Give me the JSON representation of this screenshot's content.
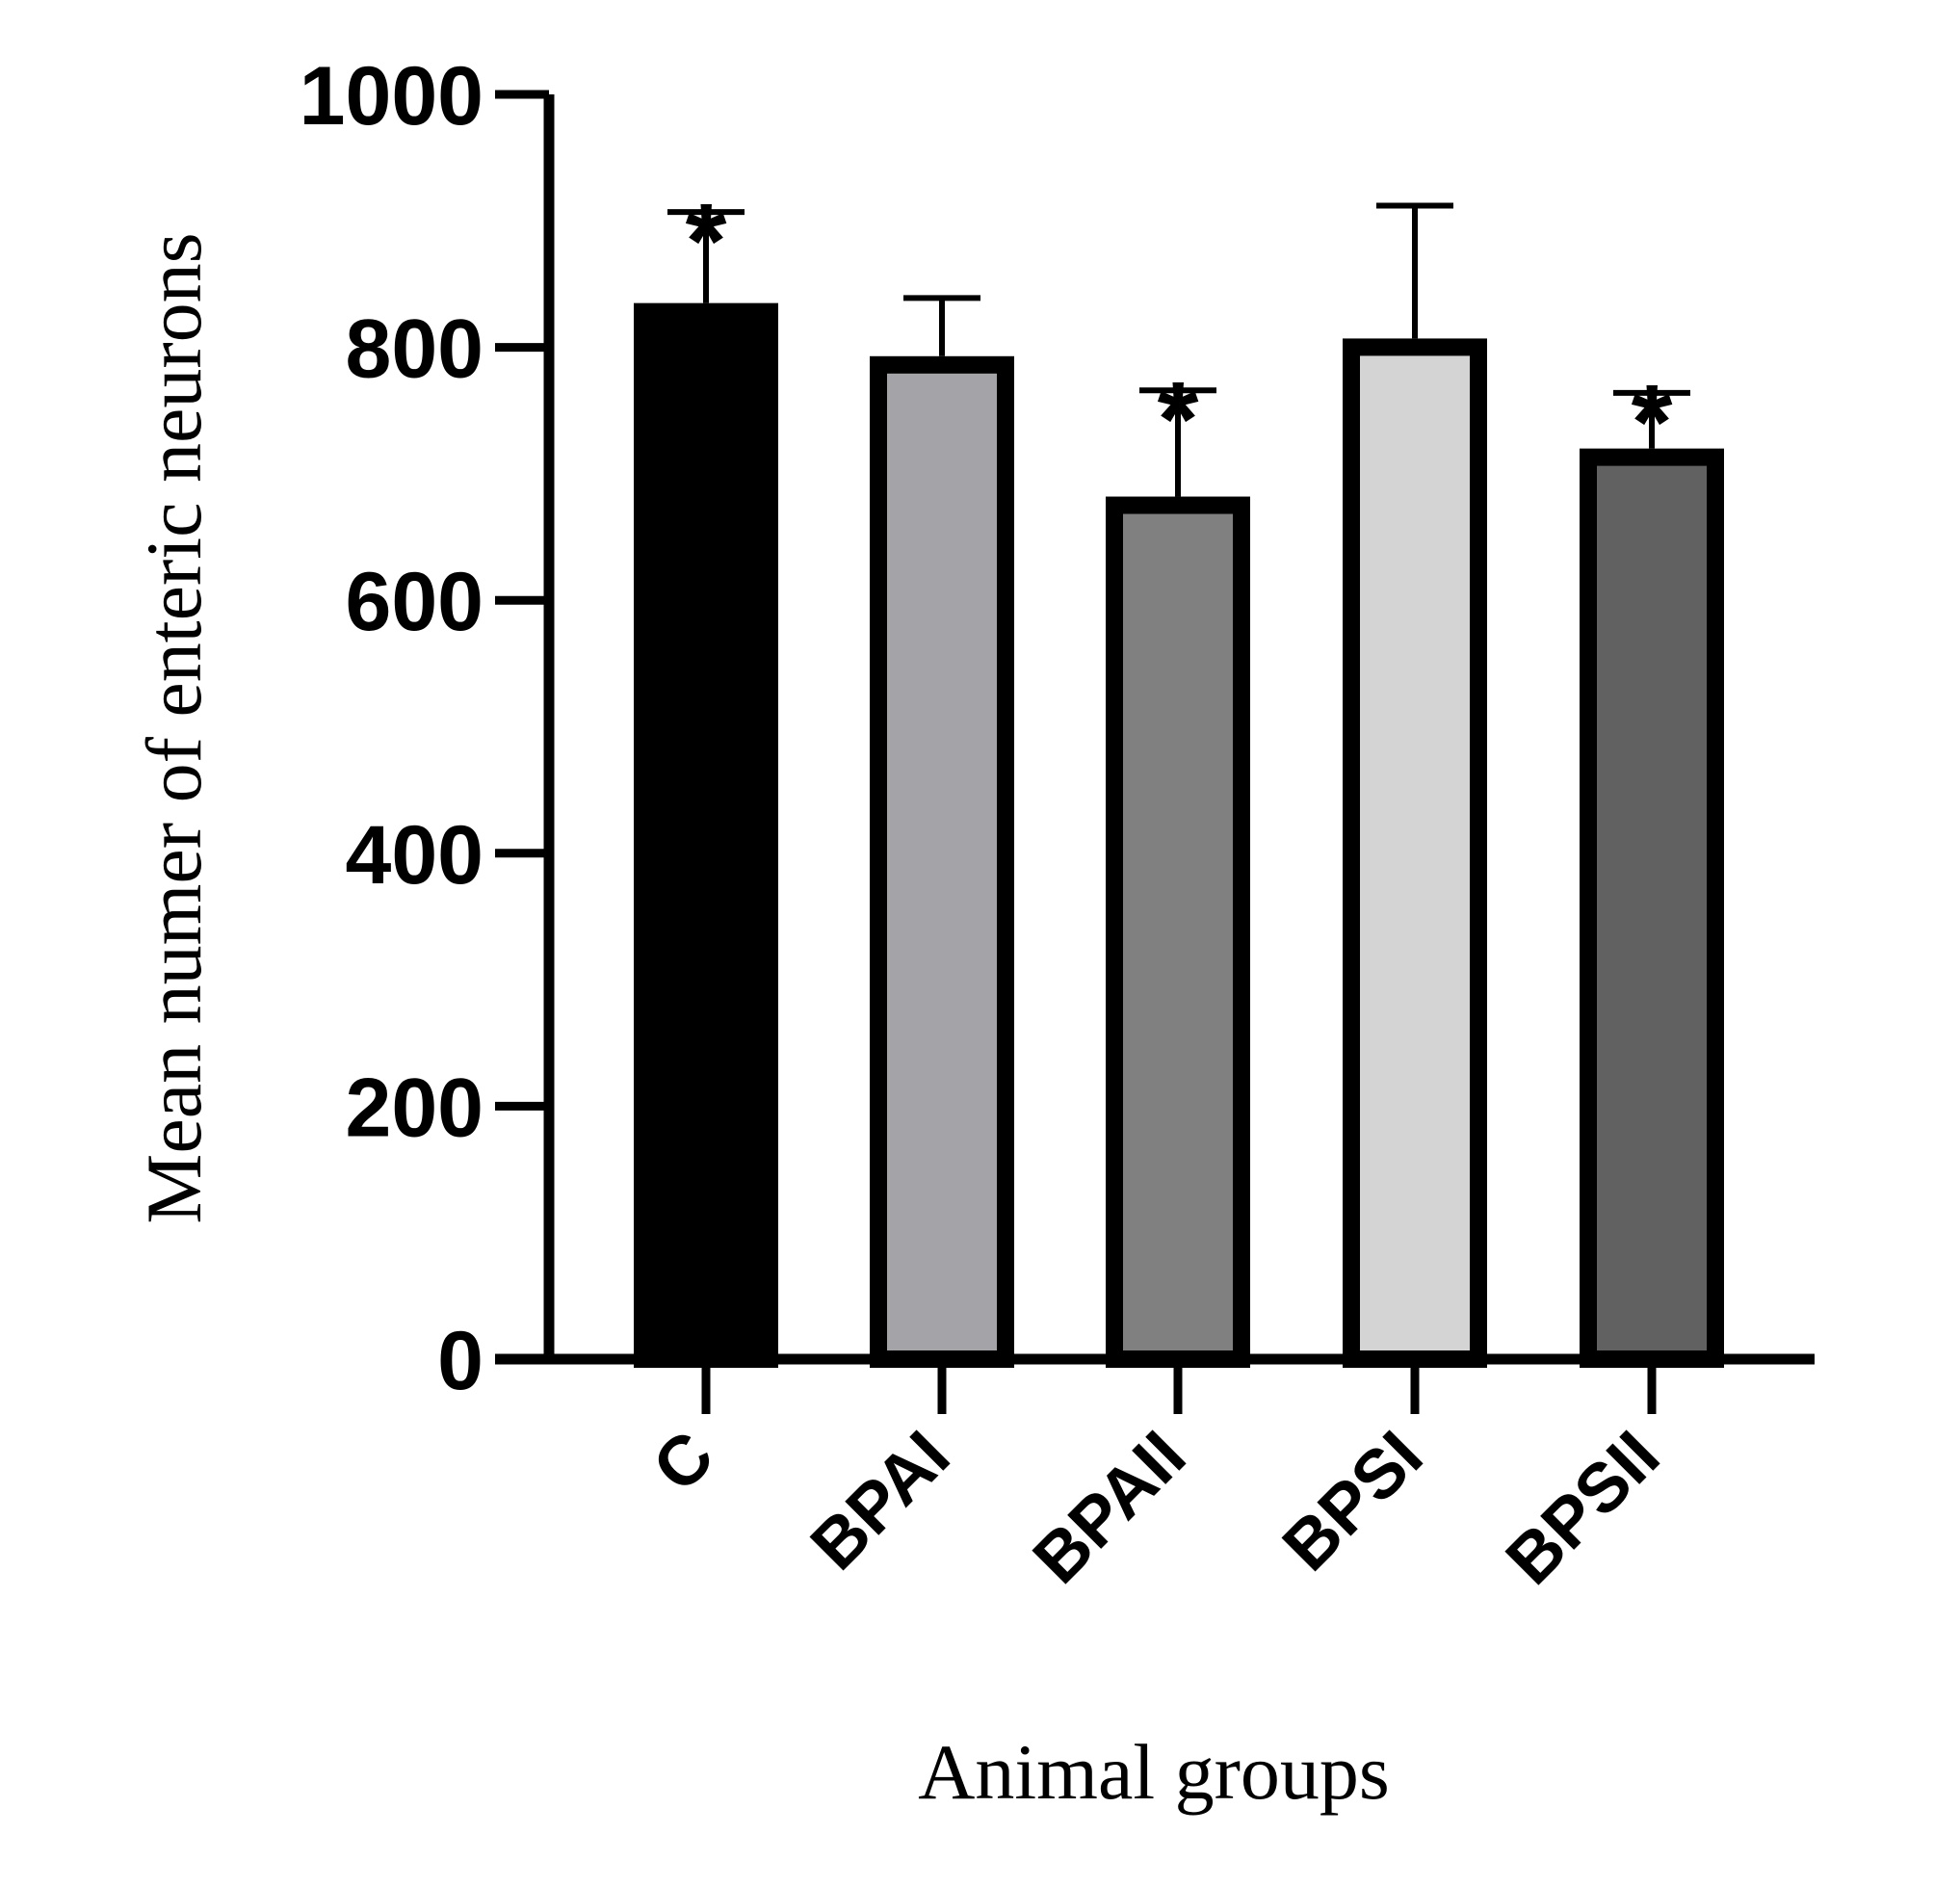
{
  "chart_data": {
    "type": "bar",
    "title": "",
    "xlabel": "Animal groups",
    "ylabel": "Mean numer of enteric neurons",
    "ylim": [
      0,
      1000
    ],
    "yticks": [
      "0",
      "200",
      "400",
      "600",
      "800",
      "1000"
    ],
    "categories": [
      "C",
      "BPAI",
      "BPAII",
      "BPSI",
      "BPSII"
    ],
    "values": [
      835,
      793,
      682,
      807,
      720
    ],
    "errors": [
      72,
      46,
      84,
      105,
      44
    ],
    "significance": [
      "*",
      "",
      "*",
      "",
      "*"
    ],
    "colors": [
      "#000000",
      "#a4a4a8",
      "#808080",
      "#d4d4d4",
      "#616161"
    ],
    "grid": false,
    "legend": "none"
  }
}
